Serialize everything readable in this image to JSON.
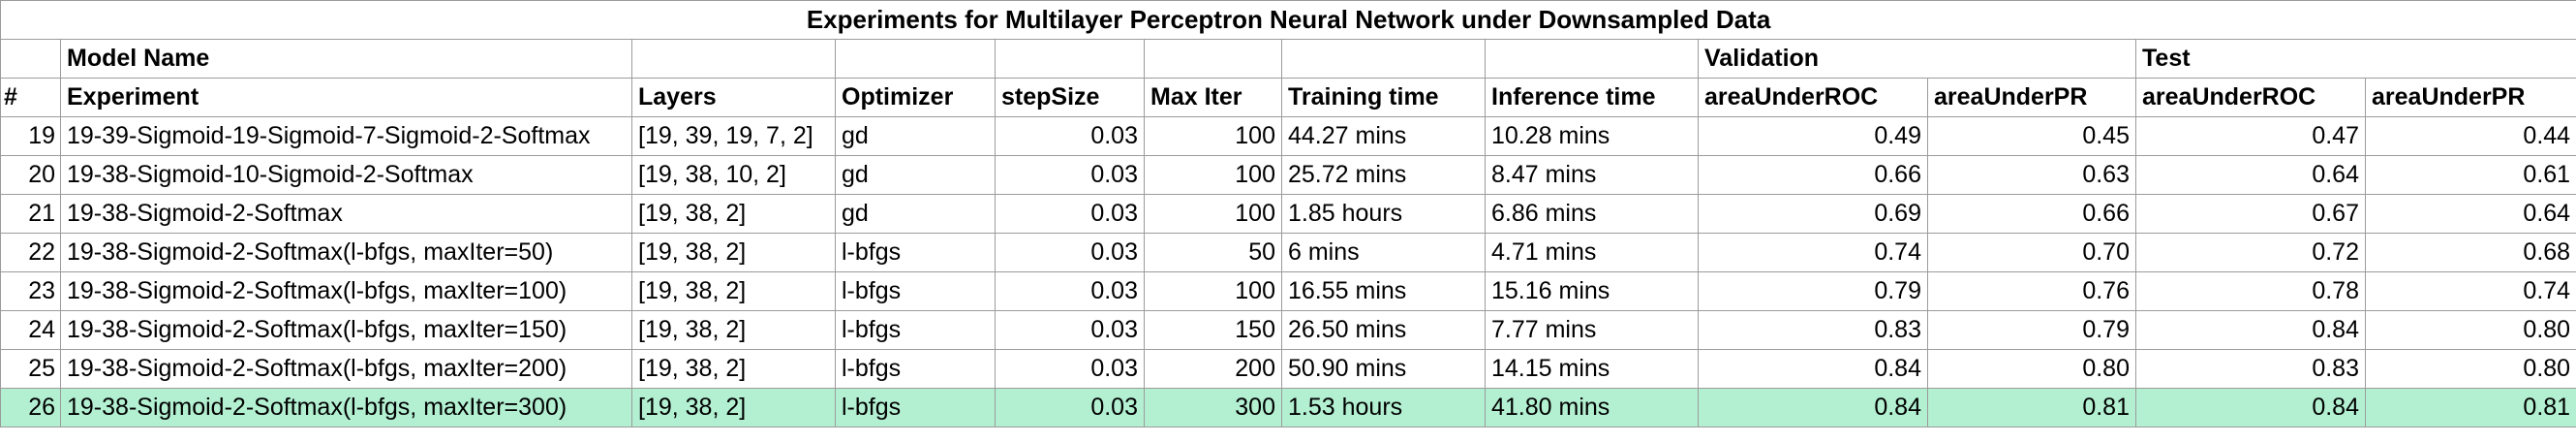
{
  "title": "Experiments for Multilayer Perceptron Neural Network under Downsampled Data",
  "header_group": {
    "model_name": "Model Name",
    "validation": "Validation",
    "test": "Test"
  },
  "columns": {
    "index": "#",
    "experiment": "Experiment",
    "layers": "Layers",
    "optimizer": "Optimizer",
    "step_size": "stepSize",
    "max_iter": "Max Iter",
    "training_time": "Training time",
    "inference_time": "Inference time",
    "val_roc": "areaUnderROC",
    "val_pr": "areaUnderPR",
    "test_roc": "areaUnderROC",
    "test_pr": "areaUnderPR"
  },
  "highlight_color": "#b3f0d2",
  "rows": [
    {
      "idx": "19",
      "experiment": "19-39-Sigmoid-19-Sigmoid-7-Sigmoid-2-Softmax",
      "layers": "[19, 39, 19, 7, 2]",
      "optimizer": "gd",
      "step_size": "0.03",
      "max_iter": "100",
      "training_time": "44.27 mins",
      "inference_time": "10.28 mins",
      "val_roc": "0.49",
      "val_pr": "0.45",
      "test_roc": "0.47",
      "test_pr": "0.44"
    },
    {
      "idx": "20",
      "experiment": "19-38-Sigmoid-10-Sigmoid-2-Softmax",
      "layers": "[19, 38, 10, 2]",
      "optimizer": "gd",
      "step_size": "0.03",
      "max_iter": "100",
      "training_time": "25.72 mins",
      "inference_time": "8.47 mins",
      "val_roc": "0.66",
      "val_pr": "0.63",
      "test_roc": "0.64",
      "test_pr": "0.61"
    },
    {
      "idx": "21",
      "experiment": "19-38-Sigmoid-2-Softmax",
      "layers": "[19, 38, 2]",
      "optimizer": "gd",
      "step_size": "0.03",
      "max_iter": "100",
      "training_time": "1.85 hours",
      "inference_time": "6.86 mins",
      "val_roc": "0.69",
      "val_pr": "0.66",
      "test_roc": "0.67",
      "test_pr": "0.64"
    },
    {
      "idx": "22",
      "experiment": "19-38-Sigmoid-2-Softmax(l-bfgs, maxIter=50)",
      "layers": "[19, 38, 2]",
      "optimizer": "l-bfgs",
      "step_size": "0.03",
      "max_iter": "50",
      "training_time": "6 mins",
      "inference_time": "4.71 mins",
      "val_roc": "0.74",
      "val_pr": "0.70",
      "test_roc": "0.72",
      "test_pr": "0.68"
    },
    {
      "idx": "23",
      "experiment": "19-38-Sigmoid-2-Softmax(l-bfgs, maxIter=100)",
      "layers": "[19, 38, 2]",
      "optimizer": "l-bfgs",
      "step_size": "0.03",
      "max_iter": "100",
      "training_time": "16.55 mins",
      "inference_time": "15.16 mins",
      "val_roc": "0.79",
      "val_pr": "0.76",
      "test_roc": "0.78",
      "test_pr": "0.74"
    },
    {
      "idx": "24",
      "experiment": "19-38-Sigmoid-2-Softmax(l-bfgs, maxIter=150)",
      "layers": "[19, 38, 2]",
      "optimizer": "l-bfgs",
      "step_size": "0.03",
      "max_iter": "150",
      "training_time": "26.50 mins",
      "inference_time": "7.77 mins",
      "val_roc": "0.83",
      "val_pr": "0.79",
      "test_roc": "0.84",
      "test_pr": "0.80"
    },
    {
      "idx": "25",
      "experiment": "19-38-Sigmoid-2-Softmax(l-bfgs, maxIter=200)",
      "layers": "[19, 38, 2]",
      "optimizer": "l-bfgs",
      "step_size": "0.03",
      "max_iter": "200",
      "training_time": "50.90 mins",
      "inference_time": "14.15 mins",
      "val_roc": "0.84",
      "val_pr": "0.80",
      "test_roc": "0.83",
      "test_pr": "0.80"
    },
    {
      "idx": "26",
      "experiment": "19-38-Sigmoid-2-Softmax(l-bfgs, maxIter=300)",
      "layers": "[19, 38, 2]",
      "optimizer": "l-bfgs",
      "step_size": "0.03",
      "max_iter": "300",
      "training_time": "1.53 hours",
      "inference_time": "41.80 mins",
      "val_roc": "0.84",
      "val_pr": "0.81",
      "test_roc": "0.84",
      "test_pr": "0.81",
      "highlight": true
    }
  ]
}
